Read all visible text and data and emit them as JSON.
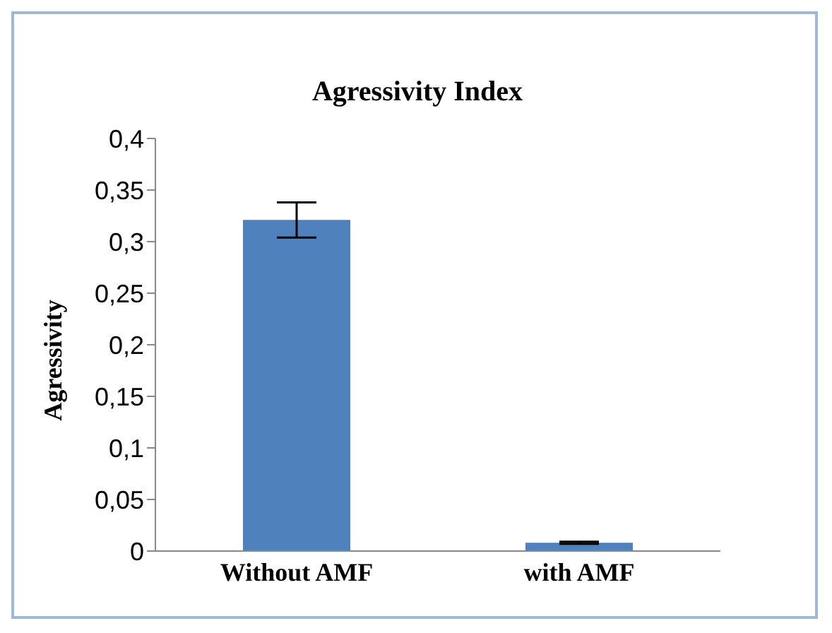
{
  "chart_data": {
    "type": "bar",
    "title": "Agressivity Index",
    "ylabel": "Agressivity",
    "categories": [
      "Without AMF",
      "with AMF"
    ],
    "values": [
      0.321,
      0.008
    ],
    "errors": [
      0.017,
      0.001
    ],
    "color": "#4f81bd",
    "ylim": [
      0,
      0.4
    ],
    "yticks": [
      {
        "value": 0,
        "label": "0"
      },
      {
        "value": 0.05,
        "label": "0,05"
      },
      {
        "value": 0.1,
        "label": "0,1"
      },
      {
        "value": 0.15,
        "label": "0,15"
      },
      {
        "value": 0.2,
        "label": "0,2"
      },
      {
        "value": 0.25,
        "label": "0,25"
      },
      {
        "value": 0.3,
        "label": "0,3"
      },
      {
        "value": 0.35,
        "label": "0,35"
      },
      {
        "value": 0.4,
        "label": "0,4"
      }
    ],
    "grid": false
  }
}
